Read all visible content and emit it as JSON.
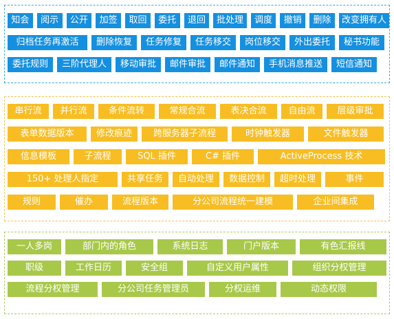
{
  "sections": [
    {
      "color": "#1590e0",
      "rows": [
        [
          "知会",
          "阅示",
          "公开",
          "加签",
          "取回",
          "委托",
          "退回",
          "批处理",
          "调度",
          "撤销",
          "删除",
          "改变拥有人"
        ],
        [
          "归档任务再激活",
          "删除恢复",
          "任务修复",
          "任务移交",
          "岗位移交",
          "外出委托",
          "秘书功能"
        ],
        [
          "委托规则",
          "三阶代理人",
          "移动审批",
          "邮件审批",
          "邮件通知",
          "手机消息推送",
          "短信通知"
        ]
      ]
    },
    {
      "color": "#f8bd22",
      "rows": [
        [
          "串行流",
          "并行流",
          "条件流转",
          "常规合流",
          "表决合流",
          "自由流",
          "层级审批"
        ],
        [
          "表单数据版本",
          "修改痕迹",
          "跨服务器子流程",
          "时钟触发器",
          "文件触发器"
        ],
        [
          "信息模板",
          "子流程",
          "SQL 插件",
          "C# 插件",
          "ActiveProcess 技术"
        ],
        [
          "150+ 处理人指定",
          "共享任务",
          "自动处理",
          "数据控制",
          "超时处理",
          "事件"
        ],
        [
          "规则",
          "催办",
          "流程版本",
          "分公司流程统一建模",
          "企业间集成"
        ]
      ]
    },
    {
      "color": "#a8c84a",
      "rows": [
        [
          "一人多岗",
          "部门内的角色",
          "系统日志",
          "门户版本",
          "有色汇报线"
        ],
        [
          "职级",
          "工作日历",
          "安全组",
          "自定义用户属性",
          "组织分权管理"
        ],
        [
          "流程分权管理",
          "分公司任务管理员",
          "分权运维",
          "动态权限"
        ]
      ]
    }
  ]
}
